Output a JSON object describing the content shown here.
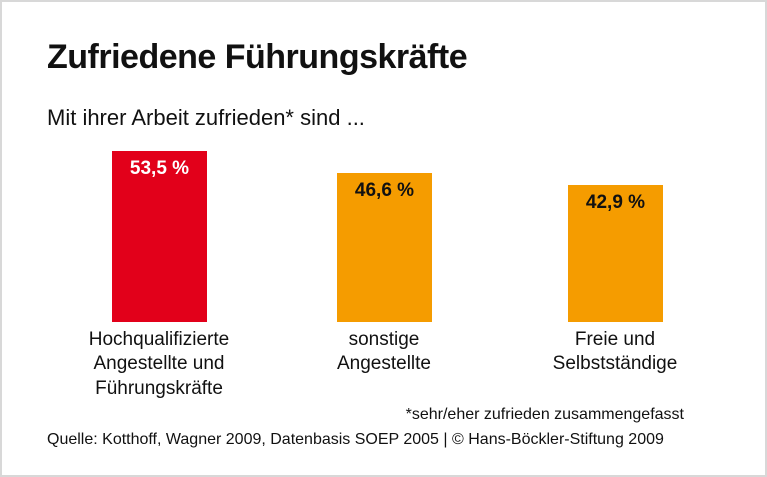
{
  "title": "Zufriedene Führungskräfte",
  "subtitle": "Mit ihrer Arbeit zufrieden* sind ...",
  "footnote": "*sehr/eher zufrieden zusammengefasst",
  "source": "Quelle: Kotthoff, Wagner 2009, Datenbasis SOEP 2005 | © Hans-Böckler-Stiftung 2009",
  "colors": {
    "highlight_bar": "#e2001a",
    "default_bar": "#f59c00",
    "highlight_value_text": "#ffffff",
    "default_value_text": "#111111",
    "border": "#d8d8d8"
  },
  "chart_data": {
    "type": "bar",
    "title": "Zufriedene Führungskräfte",
    "subtitle": "Mit ihrer Arbeit zufrieden* sind ...",
    "categories": [
      "Hochqualifizierte\nAngestellte und\nFührungskräfte",
      "sonstige\nAngestellte",
      "Freie und\nSelbstständige"
    ],
    "values": [
      53.5,
      46.6,
      42.9
    ],
    "value_labels": [
      "53,5 %",
      "46,6 %",
      "42,9 %"
    ],
    "bar_colors": [
      "#e2001a",
      "#f59c00",
      "#f59c00"
    ],
    "value_label_colors": [
      "#ffffff",
      "#111111",
      "#111111"
    ],
    "unit": "%",
    "ylim": [
      0,
      60
    ],
    "grid": false,
    "legend": false,
    "annotations": [
      "*sehr/eher zufrieden zusammengefasst",
      "Quelle: Kotthoff, Wagner 2009, Datenbasis SOEP 2005 | © Hans-Böckler-Stiftung 2009"
    ]
  }
}
